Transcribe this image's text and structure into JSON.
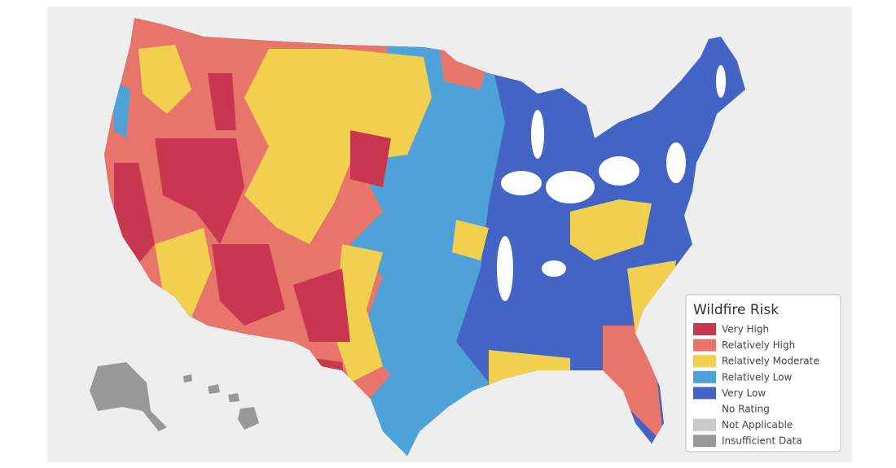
{
  "legend": {
    "title": "Wildfire Risk",
    "items": [
      {
        "label": "Very High",
        "color": "#c8374f"
      },
      {
        "label": "Relatively High",
        "color": "#e8756a"
      },
      {
        "label": "Relatively Moderate",
        "color": "#f2d04f"
      },
      {
        "label": "Relatively Low",
        "color": "#4fa2d7"
      },
      {
        "label": "Very Low",
        "color": "#4364c4"
      },
      {
        "label": "No Rating",
        "color": "#ffffff"
      },
      {
        "label": "Not Applicable",
        "color": "#c9c9c9"
      },
      {
        "label": "Insufficient Data",
        "color": "#989898"
      }
    ]
  }
}
